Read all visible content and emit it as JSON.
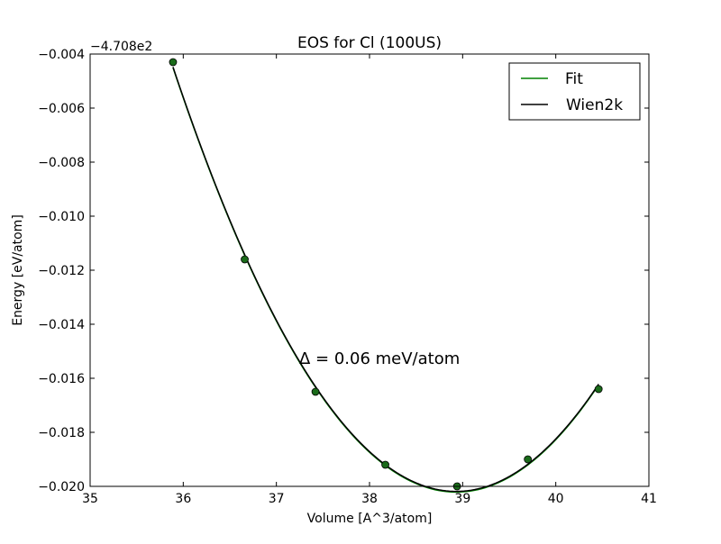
{
  "chart_data": {
    "type": "scatter",
    "title": "EOS for Cl (100US)",
    "xlabel": "Volume [A^3/atom]",
    "ylabel": "Energy [eV/atom]",
    "xlim": [
      35,
      41
    ],
    "ylim": [
      -0.02,
      -0.004
    ],
    "y_offset_label": "−4.708e2",
    "x_ticks": [
      35,
      36,
      37,
      38,
      39,
      40,
      41
    ],
    "x_tick_labels": [
      "35",
      "36",
      "37",
      "38",
      "39",
      "40",
      "41"
    ],
    "y_ticks": [
      -0.004,
      -0.006,
      -0.008,
      -0.01,
      -0.012,
      -0.014,
      -0.016,
      -0.018,
      -0.02
    ],
    "y_tick_labels": [
      "−0.004",
      "−0.006",
      "−0.008",
      "−0.010",
      "−0.012",
      "−0.014",
      "−0.016",
      "−0.018",
      "−0.020"
    ],
    "points": {
      "x": [
        35.89,
        36.66,
        37.42,
        38.17,
        38.94,
        39.7,
        40.46
      ],
      "y": [
        -0.0043,
        -0.0116,
        -0.0165,
        -0.0192,
        -0.02,
        -0.019,
        -0.0164
      ]
    },
    "series": [
      {
        "name": "Fit",
        "color": "#008000"
      },
      {
        "name": "Wien2k",
        "color": "#000000"
      }
    ],
    "annotation": "Δ = 0.06 meV/atom",
    "legend_position": "top-right",
    "grid": false,
    "marker_color": "#1a6b1a"
  }
}
